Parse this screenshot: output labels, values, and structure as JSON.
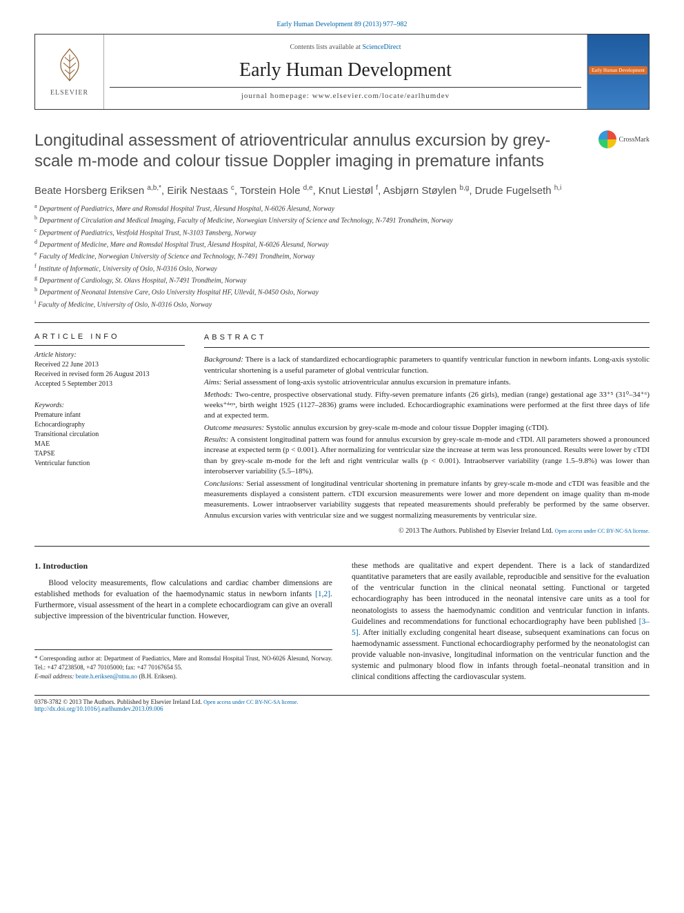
{
  "journal_ref": "Early Human Development 89 (2013) 977–982",
  "header": {
    "contents_text": "Contents lists available at ",
    "contents_link": "ScienceDirect",
    "journal_name": "Early Human Development",
    "homepage_label": "journal homepage: www.elsevier.com/locate/earlhumdev",
    "publisher": "ELSEVIER",
    "cover_mini": "Early Human Development"
  },
  "crossmark_label": "CrossMark",
  "title": "Longitudinal assessment of atrioventricular annulus excursion by grey-scale m-mode and colour tissue Doppler imaging in premature infants",
  "authors_html": "Beate Horsberg Eriksen <sup>a,b,*</sup>, Eirik Nestaas <sup>c</sup>, Torstein Hole <sup>d,e</sup>, Knut Liestøl <sup>f</sup>, Asbjørn Støylen <sup>b,g</sup>, Drude Fugelseth <sup>h,i</sup>",
  "affiliations": [
    {
      "key": "a",
      "text": "Department of Paediatrics, Møre and Romsdal Hospital Trust, Ålesund Hospital, N-6026 Ålesund, Norway"
    },
    {
      "key": "b",
      "text": "Department of Circulation and Medical Imaging, Faculty of Medicine, Norwegian University of Science and Technology, N-7491 Trondheim, Norway"
    },
    {
      "key": "c",
      "text": "Department of Paediatrics, Vestfold Hospital Trust, N-3103 Tønsberg, Norway"
    },
    {
      "key": "d",
      "text": "Department of Medicine, Møre and Romsdal Hospital Trust, Ålesund Hospital, N-6026 Ålesund, Norway"
    },
    {
      "key": "e",
      "text": "Faculty of Medicine, Norwegian University of Science and Technology, N-7491 Trondheim, Norway"
    },
    {
      "key": "f",
      "text": "Institute of Informatic, University of Oslo, N-0316 Oslo, Norway"
    },
    {
      "key": "g",
      "text": "Department of Cardiology, St. Olavs Hospital, N-7491 Trondheim, Norway"
    },
    {
      "key": "h",
      "text": "Department of Neonatal Intensive Care, Oslo University Hospital HF, Ullevål, N-0450 Oslo, Norway"
    },
    {
      "key": "i",
      "text": "Faculty of Medicine, University of Oslo, N-0316 Oslo, Norway"
    }
  ],
  "article_info": {
    "head": "article info",
    "history_head": "Article history:",
    "received": "Received 22 June 2013",
    "revised": "Received in revised form 26 August 2013",
    "accepted": "Accepted 5 September 2013",
    "keywords_head": "Keywords:",
    "keywords": [
      "Premature infant",
      "Echocardiography",
      "Transitional circulation",
      "MAE",
      "TAPSE",
      "Ventricular function"
    ]
  },
  "abstract": {
    "head": "abstract",
    "paras": [
      {
        "lead": "Background:",
        "text": " There is a lack of standardized echocardiographic parameters to quantify ventricular function in newborn infants. Long-axis systolic ventricular shortening is a useful parameter of global ventricular function."
      },
      {
        "lead": "Aims:",
        "text": " Serial assessment of long-axis systolic atrioventricular annulus excursion in premature infants."
      },
      {
        "lead": "Methods:",
        "text": " Two-centre, prospective observational study. Fifty-seven premature infants (26 girls), median (range) gestational age 33⁺⁵ (31⁰–34⁺⁶) weeks⁺ᵈᵃʸˢ, birth weight 1925 (1127–2836) grams were included. Echocardiographic examinations were performed at the first three days of life and at expected term."
      },
      {
        "lead": "Outcome measures:",
        "text": " Systolic annulus excursion by grey-scale m-mode and colour tissue Doppler imaging (cTDI)."
      },
      {
        "lead": "Results:",
        "text": " A consistent longitudinal pattern was found for annulus excursion by grey-scale m-mode and cTDI. All parameters showed a pronounced increase at expected term (p < 0.001). After normalizing for ventricular size the increase at term was less pronounced. Results were lower by cTDI than by grey-scale m-mode for the left and right ventricular walls (p < 0.001). Intraobserver variability (range 1.5–9.8%) was lower than interobserver variability (5.5–18%)."
      },
      {
        "lead": "Conclusions:",
        "text": " Serial assessment of longitudinal ventricular shortening in premature infants by grey-scale m-mode and cTDI was feasible and the measurements displayed a consistent pattern. cTDI excursion measurements were lower and more dependent on image quality than m-mode measurements. Lower intraobserver variability suggests that repeated measurements should preferably be performed by the same observer. Annulus excursion varies with ventricular size and we suggest normalizing measurements by ventricular size."
      }
    ],
    "copyright": "© 2013 The Authors. Published by Elsevier Ireland Ltd. ",
    "license_text": "Open access under CC BY-NC-SA license."
  },
  "intro": {
    "head": "1. Introduction",
    "col1": "Blood velocity measurements, flow calculations and cardiac chamber dimensions are established methods for evaluation of the haemodynamic status in newborn infants [1,2]. Furthermore, visual assessment of the heart in a complete echocardiogram can give an overall subjective impression of the biventricular function. However,",
    "col2": "these methods are qualitative and expert dependent. There is a lack of standardized quantitative parameters that are easily available, reproducible and sensitive for the evaluation of the ventricular function in the clinical neonatal setting. Functional or targeted echocardiography has been introduced in the neonatal intensive care units as a tool for neonatologists to assess the haemodynamic condition and ventricular function in infants. Guidelines and recommendations for functional echocardiography have been published [3–5]. After initially excluding congenital heart disease, subsequent examinations can focus on haemodynamic assessment. Functional echocardiography performed by the neonatologist can provide valuable non-invasive, longitudinal information on the ventricular function and the systemic and pulmonary blood flow in infants through foetal–neonatal transition and in clinical conditions affecting the cardiovascular system."
  },
  "corresponding": {
    "star": "*",
    "text": " Corresponding author at: Department of Paediatrics, Møre and Romsdal Hospital Trust, NO-6026 Ålesund, Norway. Tel.: +47 47238508, +47 70105000; fax: +47 70167654 55.",
    "email_label": "E-mail address: ",
    "email": "beate.h.eriksen@ntnu.no",
    "email_suffix": " (B.H. Eriksen)."
  },
  "footer": {
    "issn_line": "0378-3782 © 2013 The Authors. Published by Elsevier Ireland Ltd. ",
    "license_text": "Open access under CC BY-NC-SA license.",
    "doi": "http://dx.doi.org/10.1016/j.earlhumdev.2013.09.006"
  },
  "refs": {
    "r12": "[1,2]",
    "r35": "[3–5]"
  }
}
